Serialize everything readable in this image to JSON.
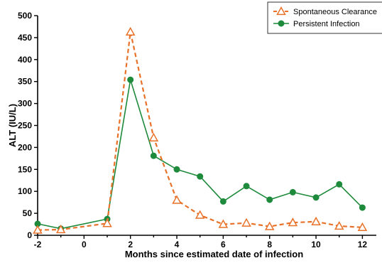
{
  "chart_data": {
    "type": "line",
    "xlabel": "Months since estimated date of infection",
    "ylabel": "ALT (IU/L)",
    "xlim": [
      -2,
      12.6
    ],
    "ylim": [
      0,
      500
    ],
    "x_ticks": [
      -2,
      0,
      2,
      4,
      6,
      8,
      10,
      12
    ],
    "x_tick_labels": [
      "-2",
      "0",
      "2",
      "4",
      "6",
      "8",
      "10",
      "12"
    ],
    "y_ticks": [
      0,
      50,
      100,
      150,
      200,
      250,
      300,
      350,
      400,
      450,
      500
    ],
    "y_tick_labels": [
      "0",
      "50",
      "100",
      "150",
      "200",
      "250",
      "300",
      "350",
      "400",
      "450",
      "500"
    ],
    "grid": false,
    "legend_position": "top-right",
    "series": [
      {
        "name": "Spontaneous Clearance",
        "color": "#e8722a",
        "line_style": "dashed",
        "marker": "open-triangle",
        "x": [
          -2,
          -1,
          1,
          2,
          3,
          4,
          5,
          6,
          7,
          8,
          9,
          10,
          11,
          12
        ],
        "y": [
          12,
          13,
          27,
          463,
          222,
          80,
          46,
          25,
          28,
          20,
          29,
          31,
          21,
          18
        ]
      },
      {
        "name": "Persistent Infection",
        "color": "#1e8a3c",
        "line_style": "solid",
        "marker": "filled-circle",
        "x": [
          -2,
          -1,
          1,
          2,
          3,
          4,
          5,
          6,
          7,
          8,
          9,
          10,
          11,
          12
        ],
        "y": [
          26,
          15,
          37,
          354,
          181,
          150,
          134,
          77,
          112,
          81,
          98,
          86,
          116,
          63
        ]
      }
    ]
  }
}
